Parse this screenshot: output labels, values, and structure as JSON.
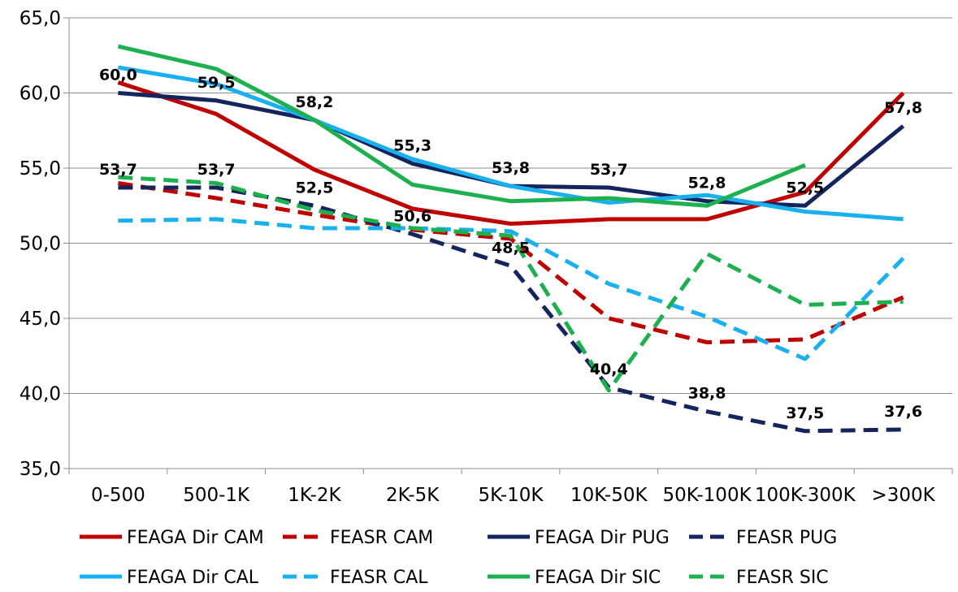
{
  "chart_data": {
    "type": "line",
    "categories": [
      "0-500",
      "500-1K",
      "1K-2K",
      "2K-5K",
      "5K-10K",
      "10K-50K",
      "50K-100K",
      "100K-300K",
      ">300K"
    ],
    "ylim": [
      35,
      65
    ],
    "yticks": [
      35,
      40,
      45,
      50,
      55,
      60,
      65
    ],
    "ytick_labels": [
      "35,0",
      "40,0",
      "45,0",
      "50,0",
      "55,0",
      "60,0",
      "65,0"
    ],
    "grid": "horizontal",
    "legend_position": "bottom",
    "series": [
      {
        "name": "FEAGA Dir CAM",
        "color": "#c00000",
        "dash": "solid",
        "values": [
          60.7,
          58.6,
          54.9,
          52.3,
          51.3,
          51.6,
          51.6,
          53.4,
          60.0
        ]
      },
      {
        "name": "FEASR CAM",
        "color": "#c00000",
        "dash": "dashed",
        "values": [
          54.0,
          53.0,
          51.9,
          50.9,
          50.3,
          45.0,
          43.4,
          43.6,
          46.4
        ]
      },
      {
        "name": "FEAGA Dir PUG",
        "color": "#14245c",
        "dash": "solid",
        "values": [
          60.0,
          59.5,
          58.2,
          55.3,
          53.8,
          53.7,
          52.8,
          52.5,
          57.8
        ],
        "labels": [
          "60,0",
          "59,5",
          "58,2",
          "55,3",
          "53,8",
          "53,7",
          "52,8",
          "52,5",
          "57,8"
        ]
      },
      {
        "name": "FEASR PUG",
        "color": "#14245c",
        "dash": "dashed",
        "values": [
          53.7,
          53.7,
          52.5,
          50.6,
          48.5,
          40.4,
          38.8,
          37.5,
          37.6
        ],
        "labels": [
          "53,7",
          "53,7",
          "52,5",
          "50,6",
          "48,5",
          "40,4",
          "38,8",
          "37,5",
          "37,6"
        ]
      },
      {
        "name": "FEAGA Dir CAL",
        "color": "#18b0ee",
        "dash": "solid",
        "values": [
          61.7,
          60.6,
          58.2,
          55.6,
          53.8,
          52.7,
          53.2,
          52.1,
          51.6
        ]
      },
      {
        "name": "FEASR CAL",
        "color": "#18b0ee",
        "dash": "dashed",
        "values": [
          51.5,
          51.6,
          51.0,
          51.0,
          50.8,
          47.3,
          45.1,
          42.3,
          49.0
        ]
      },
      {
        "name": "FEAGA Dir SIC",
        "color": "#1db04f",
        "dash": "solid",
        "values": [
          63.1,
          61.6,
          58.2,
          53.9,
          52.8,
          53.0,
          52.5,
          55.2,
          null
        ]
      },
      {
        "name": "FEASR SIC",
        "color": "#1db04f",
        "dash": "dashed",
        "values": [
          54.4,
          54.0,
          52.2,
          51.0,
          50.5,
          40.2,
          49.3,
          45.9,
          46.1
        ]
      }
    ]
  }
}
